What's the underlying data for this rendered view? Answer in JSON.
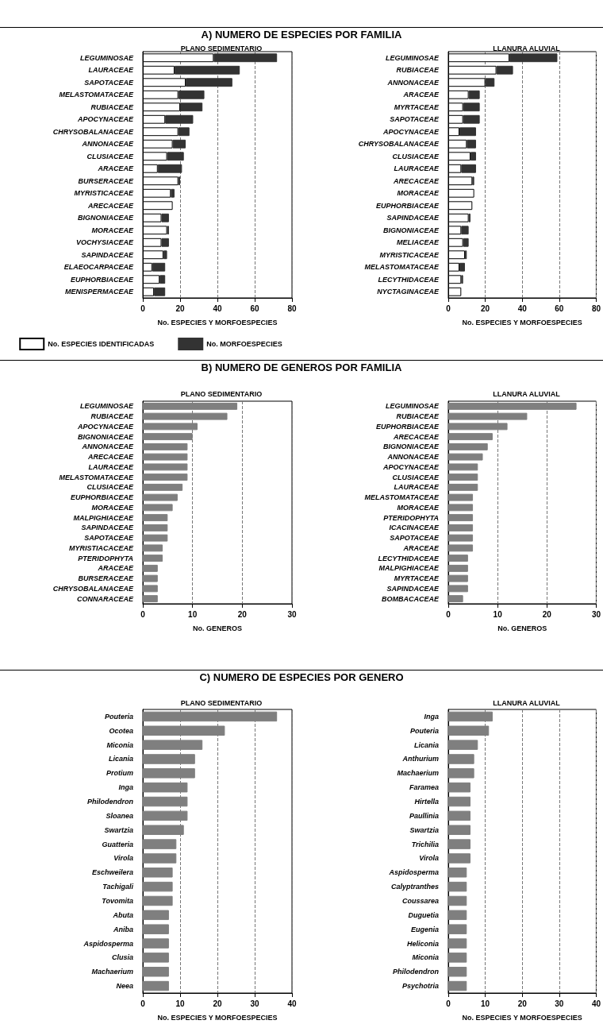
{
  "chart_data": [
    {
      "type": "bar",
      "orientation": "horizontal",
      "stacked": true,
      "title": "A) NUMERO DE ESPECIES POR FAMILIA",
      "subtitle": "PLANO SEDIMENTARIO",
      "xlabel": "No. ESPECIES Y MORFOESPECIES",
      "legend": "bottom",
      "grid": "x",
      "xlim": [
        0,
        80
      ],
      "xticks": [
        0,
        20,
        40,
        60,
        80
      ],
      "categories": [
        "LEGUMINOSAE",
        "LAURACEAE",
        "SAPOTACEAE",
        "MELASTOMATACEAE",
        "RUBIACEAE",
        "APOCYNACEAE",
        "CHRYSOBALANACEAE",
        "ANNONACEAE",
        "CLUSIACEAE",
        "ARACEAE",
        "BURSERACEAE",
        "MYRISTICACEAE",
        "ARECACEAE",
        "BIGNONIACEAE",
        "MORACEAE",
        "VOCHYSIACEAE",
        "SAPINDACEAE",
        "ELAEOCARPACEAE",
        "EUPHORBIACEAE",
        "MENISPERMACEAE"
      ],
      "series": [
        {
          "name": "No. ESPECIES IDENTIFICADAS",
          "color": "#ffffff",
          "values": [
            38,
            17,
            23,
            19,
            20,
            12,
            19,
            16,
            13,
            8,
            19,
            15,
            16,
            10,
            13,
            10,
            11,
            5,
            9,
            6
          ]
        },
        {
          "name": "No. MORFOESPECIES",
          "color": "#333333",
          "values": [
            34,
            35,
            25,
            14,
            12,
            15,
            6,
            7,
            9,
            13,
            1,
            2,
            0,
            4,
            1,
            4,
            2,
            7,
            3,
            6
          ]
        }
      ]
    },
    {
      "type": "bar",
      "orientation": "horizontal",
      "stacked": true,
      "subtitle": "LLANURA ALUVIAL",
      "xlabel": "No. ESPECIES Y MORFOESPECIES",
      "grid": "x",
      "xlim": [
        0,
        80
      ],
      "xticks": [
        0,
        20,
        40,
        60,
        80
      ],
      "categories": [
        "LEGUMINOSAE",
        "RUBIACEAE",
        "ANNONACEAE",
        "ARACEAE",
        "MYRTACEAE",
        "SAPOTACEAE",
        "APOCYNACEAE",
        "CHRYSOBALANACEAE",
        "CLUSIACEAE",
        "LAURACEAE",
        "ARECACEAE",
        "MORACEAE",
        "EUPHORBIACEAE",
        "SAPINDACEAE",
        "BIGNONIACEAE",
        "MELIACEAE",
        "MYRISTICACEAE",
        "MELASTOMATACEAE",
        "LECYTHIDACEAE",
        "NYCTAGINACEAE"
      ],
      "series": [
        {
          "color": "#ffffff",
          "values": [
            33,
            26,
            20,
            11,
            8,
            8,
            6,
            10,
            12,
            7,
            13,
            14,
            13,
            11,
            7,
            8,
            9,
            6,
            7,
            7
          ]
        },
        {
          "color": "#333333",
          "values": [
            26,
            9,
            5,
            6,
            9,
            9,
            9,
            5,
            3,
            8,
            1,
            0,
            0,
            1,
            4,
            3,
            1,
            3,
            1,
            0
          ]
        }
      ]
    },
    {
      "type": "bar",
      "orientation": "horizontal",
      "title": "B) NUMERO DE GENEROS POR FAMILIA",
      "subtitle": "PLANO SEDIMENTARIO",
      "xlabel": "No. GENEROS",
      "grid": "x",
      "xlim": [
        0,
        30
      ],
      "xticks": [
        0,
        10,
        20,
        30
      ],
      "color": "#7f7f7f",
      "categories": [
        "LEGUMINOSAE",
        "RUBIACEAE",
        "APOCYNACEAE",
        "BIGNONIACEAE",
        "ANNONACEAE",
        "ARECACEAE",
        "LAURACEAE",
        "MELASTOMATACEAE",
        "CLUSIACEAE",
        "EUPHORBIACEAE",
        "MORACEAE",
        "MALPIGHIACEAE",
        "SAPINDACEAE",
        "SAPOTACEAE",
        "MYRISTIACACEAE",
        "PTERIDOPHYTA",
        "ARACEAE",
        "BURSERACEAE",
        "CHRYSOBALANACEAE",
        "CONNARACEAE"
      ],
      "values": [
        19,
        17,
        11,
        10,
        9,
        9,
        9,
        9,
        8,
        7,
        6,
        5,
        5,
        5,
        4,
        4,
        3,
        3,
        3,
        3
      ]
    },
    {
      "type": "bar",
      "orientation": "horizontal",
      "subtitle": "LLANURA ALUVIAL",
      "xlabel": "No. GENEROS",
      "grid": "x",
      "xlim": [
        0,
        30
      ],
      "xticks": [
        0,
        10,
        20,
        30
      ],
      "color": "#7f7f7f",
      "categories": [
        "LEGUMINOSAE",
        "RUBIACEAE",
        "EUPHORBIACEAE",
        "ARECACEAE",
        "BIGNONIACEAE",
        "ANNONACEAE",
        "APOCYNACEAE",
        "CLUSIACEAE",
        "LAURACEAE",
        "MELASTOMATACEAE",
        "MORACEAE",
        "PTERIDOPHYTA",
        "ICACINACEAE",
        "SAPOTACEAE",
        "ARACEAE",
        "LECYTHIDACEAE",
        "MALPIGHIACEAE",
        "MYRTACEAE",
        "SAPINDACEAE",
        "BOMBACACEAE"
      ],
      "values": [
        26,
        16,
        12,
        9,
        8,
        7,
        6,
        6,
        6,
        5,
        5,
        5,
        5,
        5,
        5,
        4,
        4,
        4,
        4,
        3
      ]
    },
    {
      "type": "bar",
      "orientation": "horizontal",
      "title": "C) NUMERO DE ESPECIES POR GENERO",
      "subtitle": "PLANO SEDIMENTARIO",
      "xlabel": "No. ESPECIES Y MORFOESPECIES",
      "grid": "x",
      "xlim": [
        0,
        40
      ],
      "xticks": [
        0,
        10,
        20,
        30,
        40
      ],
      "color": "#7f7f7f",
      "categories": [
        "Pouteria",
        "Ocotea",
        "Miconia",
        "Licania",
        "Protium",
        "Inga",
        "Philodendron",
        "Sloanea",
        "Swartzia",
        "Guatteria",
        "Virola",
        "Eschweilera",
        "Tachigali",
        "Tovomita",
        "Abuta",
        "Aniba",
        "Aspidosperma",
        "Clusia",
        "Machaerium",
        "Neea"
      ],
      "values": [
        36,
        22,
        16,
        14,
        14,
        12,
        12,
        12,
        11,
        9,
        9,
        8,
        8,
        8,
        7,
        7,
        7,
        7,
        7,
        7
      ]
    },
    {
      "type": "bar",
      "orientation": "horizontal",
      "subtitle": "LLANURA ALUVIAL",
      "xlabel": "No. ESPECIES Y MORFOESPECIES",
      "grid": "x",
      "xlim": [
        0,
        40
      ],
      "xticks": [
        0,
        10,
        20,
        30,
        40
      ],
      "color": "#7f7f7f",
      "categories": [
        "Inga",
        "Pouteria",
        "Licania",
        "Anthurium",
        "Machaerium",
        "Faramea",
        "Hirtella",
        "Paullinia",
        "Swartzia",
        "Trichilia",
        "Virola",
        "Aspidosperma",
        "Calyptranthes",
        "Coussarea",
        "Duguetia",
        "Eugenia",
        "Heliconia",
        "Miconia",
        "Philodendron",
        "Psychotria"
      ],
      "values": [
        12,
        11,
        8,
        7,
        7,
        6,
        6,
        6,
        6,
        6,
        6,
        5,
        5,
        5,
        5,
        5,
        5,
        5,
        5,
        5
      ]
    }
  ]
}
